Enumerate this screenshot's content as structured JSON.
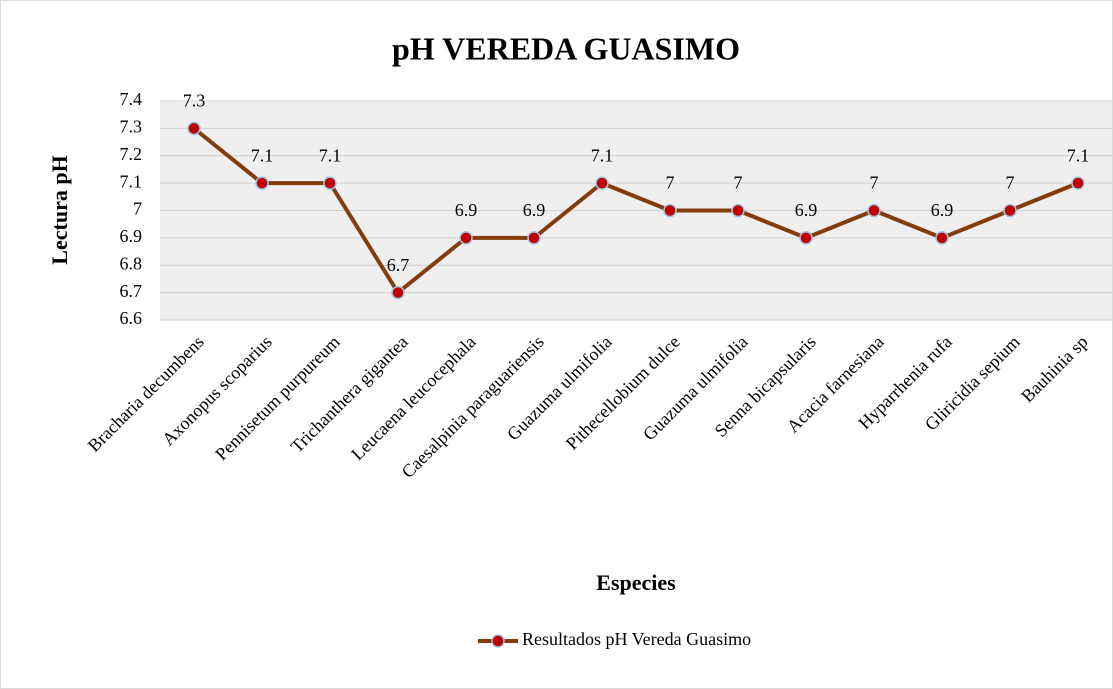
{
  "chart_data": {
    "type": "line",
    "title": "pH VEREDA GUASIMO",
    "x_label": "Especies",
    "y_label": "Lectura pH",
    "categories": [
      "Bracharia decumbens",
      "Axonopus scoparius",
      "Pennisetum purpureum",
      "Trichanthera gigantea",
      "Leucaena leucocephala",
      "Caesalpinia  paraguariensis",
      "Guazuma ulmifolia",
      "Pithecellobium dulce",
      "Guazuma ulmifolia",
      "Senna bicapsularis",
      "Acacia farnesiana",
      "Hyparrhenia rufa",
      "Gliricidia sepium",
      "Bauhinia sp"
    ],
    "series": [
      {
        "name": "Resultados pH Vereda Guasimo",
        "color": "#843c0c",
        "marker_color": "#c00000",
        "marker_edge": "#9dc3e6",
        "values": [
          7.3,
          7.1,
          7.1,
          6.7,
          6.9,
          6.9,
          7.1,
          7,
          7,
          6.9,
          7,
          6.9,
          7,
          7.1
        ]
      }
    ],
    "ylim": [
      6.6,
      7.4
    ],
    "yticks": [
      6.6,
      6.7,
      6.8,
      6.9,
      7,
      7.1,
      7.2,
      7.3,
      7.4
    ],
    "grid": true,
    "legend": "bottom"
  }
}
